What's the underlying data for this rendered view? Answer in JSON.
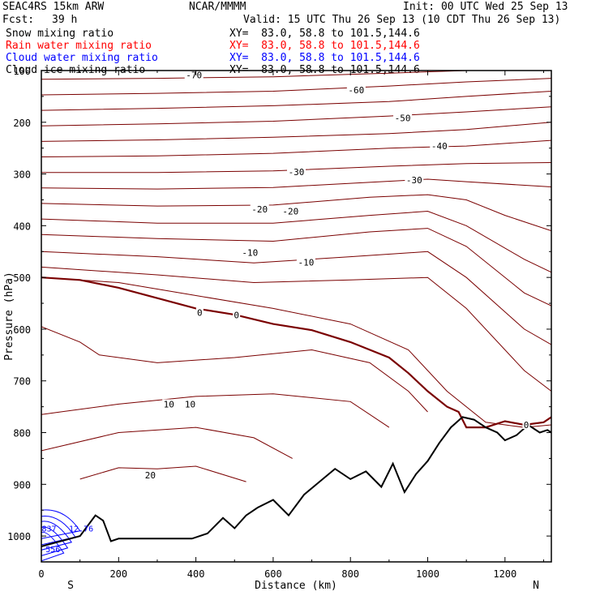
{
  "header": {
    "model": "SEAC4RS 15km ARW",
    "org": "NCAR/MMMM",
    "init": "Init: 00 UTC Wed 25 Sep 13",
    "fcst_label": "Fcst:",
    "fcst_value": "39 h",
    "valid": "Valid: 15 UTC Thu 26 Sep 13 (10 CDT Thu 26 Sep 13)"
  },
  "legend": [
    {
      "label": "Snow mixing ratio",
      "xy": "XY=  83.0, 58.8 to 101.5,144.6",
      "color": "#000000"
    },
    {
      "label": "Rain water mixing ratio",
      "xy": "XY=  83.0, 58.8 to 101.5,144.6",
      "color": "#ff0000"
    },
    {
      "label": "Cloud water mixing ratio",
      "xy": "XY=  83.0, 58.8 to 101.5,144.6",
      "color": "#0000ff"
    },
    {
      "label": "Cloud ice mixing ratio",
      "xy": "XY=  83.0, 58.8 to 101.5,144.6",
      "color": "#000000"
    }
  ],
  "chart_data": {
    "type": "line",
    "xlabel": "Distance (km)",
    "ylabel": "Pressure (hPa)",
    "xlim": [
      0,
      1320
    ],
    "ylim": [
      1050,
      100
    ],
    "x_ticks": [
      0,
      200,
      400,
      600,
      800,
      1000,
      1200
    ],
    "y_ticks": [
      100,
      200,
      300,
      400,
      500,
      600,
      700,
      800,
      900,
      1000
    ],
    "x_tick_labels": [
      "0",
      "200",
      "400",
      "600",
      "800",
      "1000",
      "1200"
    ],
    "y_tick_labels": [
      "100",
      "200",
      "300",
      "400",
      "500",
      "600",
      "700",
      "800",
      "900",
      "1000"
    ],
    "end_labels": {
      "left": "S",
      "right": "N"
    },
    "colors": {
      "isotherm": "#7a0000",
      "freezing": "#7a0000",
      "terrain": "#000000",
      "cloud_water": "#0000ff",
      "frame": "#000000"
    },
    "isotherm_labels": [
      {
        "text": "-70",
        "x": 395,
        "y": 109
      },
      {
        "text": "-60",
        "x": 815,
        "y": 138
      },
      {
        "text": "-50",
        "x": 935,
        "y": 192
      },
      {
        "text": "-40",
        "x": 1030,
        "y": 246
      },
      {
        "text": "-30",
        "x": 660,
        "y": 296
      },
      {
        "text": "-30",
        "x": 965,
        "y": 312
      },
      {
        "text": "-20",
        "x": 565,
        "y": 368
      },
      {
        "text": "-20",
        "x": 645,
        "y": 372
      },
      {
        "text": "-10",
        "x": 540,
        "y": 452
      },
      {
        "text": "-10",
        "x": 685,
        "y": 471
      },
      {
        "text": "0",
        "x": 410,
        "y": 568
      },
      {
        "text": "0",
        "x": 505,
        "y": 573
      },
      {
        "text": "0",
        "x": 1255,
        "y": 785
      },
      {
        "text": "10",
        "x": 330,
        "y": 745
      },
      {
        "text": "10",
        "x": 385,
        "y": 745
      },
      {
        "text": "20",
        "x": 282,
        "y": 882
      }
    ],
    "cloud_water_labels": [
      {
        "text": "837",
        "x": 20,
        "y": 985
      },
      {
        "text": "12.76",
        "x": 103,
        "y": 985
      },
      {
        "text": "556",
        "x": 30,
        "y": 1025
      }
    ],
    "isotherms": [
      {
        "x": [
          0,
          300,
          600,
          900,
          1100,
          1320
        ],
        "y": [
          117,
          115,
          112,
          105,
          100,
          98
        ]
      },
      {
        "x": [
          0,
          300,
          600,
          900,
          1100,
          1320
        ],
        "y": [
          147,
          144,
          140,
          130,
          122,
          115
        ]
      },
      {
        "x": [
          0,
          300,
          600,
          900,
          1100,
          1320
        ],
        "y": [
          177,
          173,
          168,
          160,
          150,
          140
        ]
      },
      {
        "x": [
          0,
          300,
          600,
          900,
          1100,
          1320
        ],
        "y": [
          207,
          203,
          198,
          188,
          180,
          170
        ]
      },
      {
        "x": [
          0,
          300,
          600,
          900,
          1100,
          1320
        ],
        "y": [
          237,
          234,
          229,
          222,
          214,
          200
        ]
      },
      {
        "x": [
          0,
          300,
          600,
          900,
          1100,
          1320
        ],
        "y": [
          267,
          265,
          260,
          250,
          246,
          235
        ]
      },
      {
        "x": [
          0,
          300,
          600,
          900,
          1100,
          1320
        ],
        "y": [
          297,
          297,
          294,
          285,
          280,
          278
        ]
      },
      {
        "x": [
          0,
          300,
          600,
          800,
          1000,
          1100,
          1320
        ],
        "y": [
          327,
          329,
          326,
          318,
          310,
          315,
          325
        ]
      },
      {
        "x": [
          0,
          300,
          600,
          850,
          1000,
          1100,
          1200,
          1320
        ],
        "y": [
          357,
          362,
          360,
          345,
          340,
          350,
          380,
          410
        ]
      },
      {
        "x": [
          0,
          300,
          600,
          850,
          1000,
          1100,
          1250,
          1320
        ],
        "y": [
          387,
          395,
          395,
          380,
          372,
          400,
          465,
          490
        ]
      },
      {
        "x": [
          0,
          300,
          600,
          850,
          1000,
          1100,
          1250,
          1320
        ],
        "y": [
          417,
          425,
          430,
          412,
          405,
          440,
          530,
          555
        ]
      },
      {
        "x": [
          0,
          300,
          550,
          800,
          1000,
          1100,
          1250,
          1320
        ],
        "y": [
          450,
          460,
          472,
          460,
          450,
          500,
          600,
          630
        ]
      },
      {
        "x": [
          0,
          300,
          550,
          800,
          1000,
          1100,
          1250,
          1320
        ],
        "y": [
          480,
          495,
          510,
          505,
          500,
          560,
          680,
          720
        ]
      },
      {
        "x": [
          0,
          200,
          400,
          600,
          800,
          950,
          1050,
          1150,
          1250,
          1320
        ],
        "y": [
          500,
          510,
          535,
          560,
          590,
          640,
          720,
          780,
          790,
          785
        ]
      },
      {
        "x": [
          0,
          100,
          150,
          300,
          500,
          700,
          850,
          950,
          1000
        ],
        "y": [
          595,
          625,
          650,
          665,
          655,
          640,
          665,
          720,
          760
        ]
      },
      {
        "x": [
          0,
          200,
          400,
          600,
          800,
          900
        ],
        "y": [
          765,
          745,
          730,
          725,
          740,
          790
        ]
      },
      {
        "x": [
          0,
          200,
          400,
          550,
          650
        ],
        "y": [
          835,
          800,
          790,
          810,
          850
        ]
      },
      {
        "x": [
          100,
          200,
          300,
          400,
          530
        ],
        "y": [
          890,
          868,
          870,
          865,
          895
        ]
      }
    ],
    "freezing_level": {
      "x": [
        0,
        100,
        200,
        300,
        400,
        500,
        600,
        700,
        800,
        900,
        950,
        1000,
        1050,
        1080,
        1100,
        1150,
        1200,
        1250,
        1300,
        1320
      ],
      "y": [
        500,
        505,
        520,
        540,
        560,
        572,
        590,
        602,
        625,
        655,
        685,
        720,
        750,
        760,
        790,
        790,
        778,
        785,
        780,
        770
      ]
    },
    "terrain": {
      "x": [
        0,
        50,
        100,
        140,
        160,
        180,
        200,
        250,
        300,
        350,
        390,
        430,
        470,
        500,
        530,
        560,
        600,
        640,
        680,
        720,
        760,
        800,
        840,
        880,
        910,
        940,
        970,
        1000,
        1030,
        1060,
        1090,
        1120,
        1150,
        1180,
        1200,
        1230,
        1260,
        1290,
        1310,
        1320
      ],
      "y": [
        1020,
        1010,
        1000,
        960,
        970,
        1010,
        1005,
        1005,
        1005,
        1005,
        1005,
        995,
        965,
        985,
        960,
        945,
        930,
        960,
        920,
        895,
        870,
        890,
        875,
        905,
        860,
        915,
        880,
        855,
        820,
        790,
        770,
        775,
        790,
        800,
        815,
        805,
        785,
        800,
        795,
        800
      ]
    }
  }
}
